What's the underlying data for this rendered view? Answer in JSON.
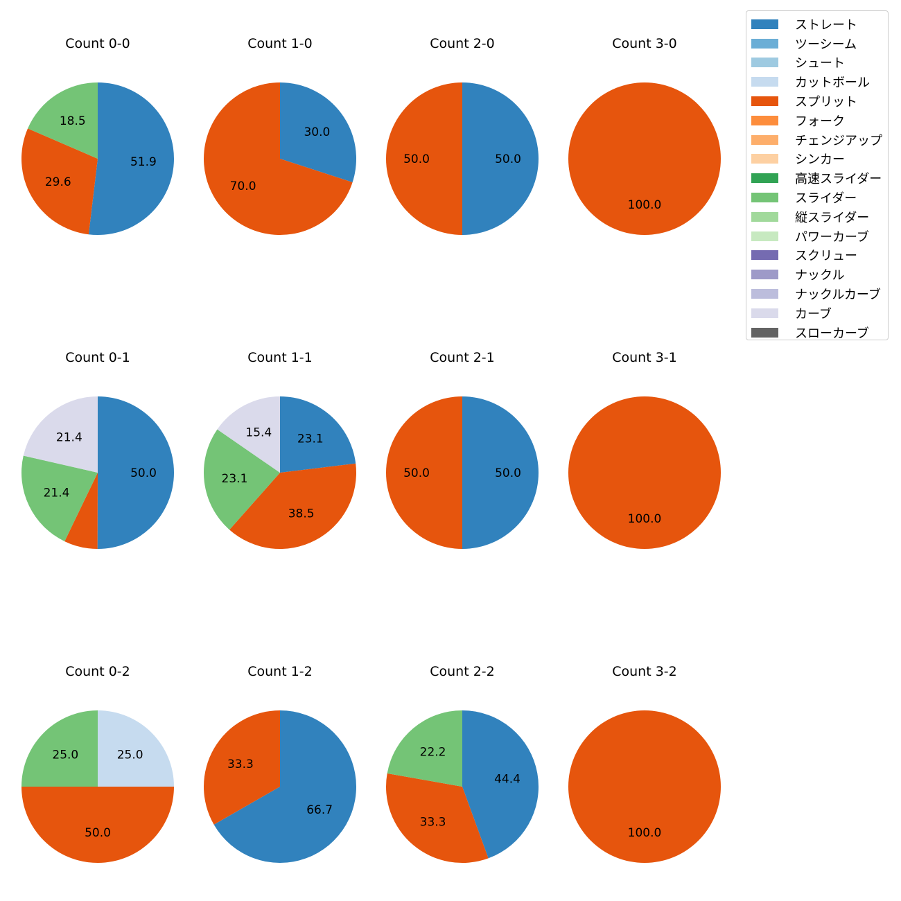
{
  "chart_data": {
    "type": "pie",
    "legend_position": "top-right",
    "legend": [
      {
        "label": "ストレート",
        "color": "#3182bd"
      },
      {
        "label": "ツーシーム",
        "color": "#6baed6"
      },
      {
        "label": "シュート",
        "color": "#9ecae1"
      },
      {
        "label": "カットボール",
        "color": "#c6dbef"
      },
      {
        "label": "スプリット",
        "color": "#e6550d"
      },
      {
        "label": "フォーク",
        "color": "#fd8d3c"
      },
      {
        "label": "チェンジアップ",
        "color": "#fdae6b"
      },
      {
        "label": "シンカー",
        "color": "#fdd0a2"
      },
      {
        "label": "高速スライダー",
        "color": "#31a354"
      },
      {
        "label": "スライダー",
        "color": "#74c476"
      },
      {
        "label": "縦スライダー",
        "color": "#a1d99b"
      },
      {
        "label": "パワーカーブ",
        "color": "#c7e9c0"
      },
      {
        "label": "スクリュー",
        "color": "#756bb1"
      },
      {
        "label": "ナックル",
        "color": "#9e9ac8"
      },
      {
        "label": "ナックルカーブ",
        "color": "#bcbddc"
      },
      {
        "label": "カーブ",
        "color": "#dadaeb"
      },
      {
        "label": "スローカーブ",
        "color": "#636363"
      }
    ],
    "panels": [
      {
        "title": "Count 0-0",
        "slices": [
          {
            "pitch": "ストレート",
            "value": 51.9,
            "label": "51.9"
          },
          {
            "pitch": "スプリット",
            "value": 29.6,
            "label": "29.6"
          },
          {
            "pitch": "スライダー",
            "value": 18.5,
            "label": "18.5"
          }
        ]
      },
      {
        "title": "Count 1-0",
        "slices": [
          {
            "pitch": "ストレート",
            "value": 30.0,
            "label": "30.0"
          },
          {
            "pitch": "スプリット",
            "value": 70.0,
            "label": "70.0"
          }
        ]
      },
      {
        "title": "Count 2-0",
        "slices": [
          {
            "pitch": "ストレート",
            "value": 50.0,
            "label": "50.0"
          },
          {
            "pitch": "スプリット",
            "value": 50.0,
            "label": "50.0"
          }
        ]
      },
      {
        "title": "Count 3-0",
        "slices": [
          {
            "pitch": "スプリット",
            "value": 100.0,
            "label": "100.0"
          }
        ]
      },
      {
        "title": "Count 0-1",
        "slices": [
          {
            "pitch": "ストレート",
            "value": 50.0,
            "label": "50.0"
          },
          {
            "pitch": "スプリット",
            "value": 7.1,
            "label": ""
          },
          {
            "pitch": "スライダー",
            "value": 21.4,
            "label": "21.4"
          },
          {
            "pitch": "カーブ",
            "value": 21.4,
            "label": "21.4"
          }
        ]
      },
      {
        "title": "Count 1-1",
        "slices": [
          {
            "pitch": "ストレート",
            "value": 23.1,
            "label": "23.1"
          },
          {
            "pitch": "スプリット",
            "value": 38.5,
            "label": "38.5"
          },
          {
            "pitch": "スライダー",
            "value": 23.1,
            "label": "23.1"
          },
          {
            "pitch": "カーブ",
            "value": 15.4,
            "label": "15.4"
          }
        ]
      },
      {
        "title": "Count 2-1",
        "slices": [
          {
            "pitch": "ストレート",
            "value": 50.0,
            "label": "50.0"
          },
          {
            "pitch": "スプリット",
            "value": 50.0,
            "label": "50.0"
          }
        ]
      },
      {
        "title": "Count 3-1",
        "slices": [
          {
            "pitch": "スプリット",
            "value": 100.0,
            "label": "100.0"
          }
        ]
      },
      {
        "title": "Count 0-2",
        "slices": [
          {
            "pitch": "カットボール",
            "value": 25.0,
            "label": "25.0"
          },
          {
            "pitch": "スプリット",
            "value": 50.0,
            "label": "50.0"
          },
          {
            "pitch": "スライダー",
            "value": 25.0,
            "label": "25.0"
          }
        ]
      },
      {
        "title": "Count 1-2",
        "slices": [
          {
            "pitch": "ストレート",
            "value": 66.7,
            "label": "66.7"
          },
          {
            "pitch": "スプリット",
            "value": 33.3,
            "label": "33.3"
          }
        ]
      },
      {
        "title": "Count 2-2",
        "slices": [
          {
            "pitch": "ストレート",
            "value": 44.4,
            "label": "44.4"
          },
          {
            "pitch": "スプリット",
            "value": 33.3,
            "label": "33.3"
          },
          {
            "pitch": "スライダー",
            "value": 22.2,
            "label": "22.2"
          }
        ]
      },
      {
        "title": "Count 3-2",
        "slices": [
          {
            "pitch": "スプリット",
            "value": 100.0,
            "label": "100.0"
          }
        ]
      }
    ]
  }
}
